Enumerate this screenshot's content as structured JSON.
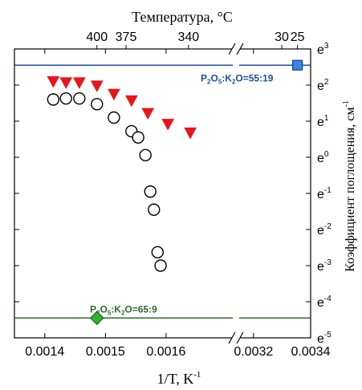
{
  "chart_data": {
    "type": "scatter",
    "top_axis": {
      "label": "Температура, °С",
      "ticks": [
        {
          "label": "400",
          "x": 0.001486
        },
        {
          "label": "375",
          "x": 0.001534
        },
        {
          "label": "340",
          "x": 0.001637
        },
        {
          "label": "30",
          "x": 0.003299
        },
        {
          "label": "25",
          "x": 0.003354
        }
      ]
    },
    "x_axis": {
      "label_main": "1/T, K",
      "label_sup": "-1",
      "segments": [
        {
          "range": [
            0.00135,
            0.00171
          ]
        },
        {
          "range": [
            0.00315,
            0.0034
          ]
        }
      ],
      "ticks": [
        {
          "label": "0.0014",
          "x": 0.0014
        },
        {
          "label": "0.0015",
          "x": 0.0015
        },
        {
          "label": "0.0016",
          "x": 0.0016
        },
        {
          "label": "0.0032",
          "x": 0.0032
        },
        {
          "label": "0.0034",
          "x": 0.0034
        }
      ]
    },
    "y_axis": {
      "label_main": "Коэффициент поглощения, см",
      "label_sup": "-1",
      "scale": "log-e",
      "exp_range": [
        -5,
        3
      ],
      "ticks": [
        {
          "base": "e",
          "exp": "3",
          "value": 3
        },
        {
          "base": "e",
          "exp": "2",
          "value": 2
        },
        {
          "base": "e",
          "exp": "1",
          "value": 1
        },
        {
          "base": "e",
          "exp": "0",
          "value": 0
        },
        {
          "base": "e",
          "exp": "-1",
          "value": -1
        },
        {
          "base": "e",
          "exp": "-2",
          "value": -2
        },
        {
          "base": "e",
          "exp": "-3",
          "value": -3
        },
        {
          "base": "e",
          "exp": "-4",
          "value": -4
        },
        {
          "base": "e",
          "exp": "-5",
          "value": -5
        }
      ]
    },
    "series": [
      {
        "marker": "triangle-down",
        "color": "#e8151b",
        "points": [
          [
            0.001414,
            2.1
          ],
          [
            0.001435,
            2.07
          ],
          [
            0.001457,
            2.07
          ],
          [
            0.001486,
            1.98
          ],
          [
            0.001514,
            1.75
          ],
          [
            0.001543,
            1.57
          ],
          [
            0.00157,
            1.22
          ],
          [
            0.001603,
            0.92
          ],
          [
            0.00164,
            0.68
          ]
        ]
      },
      {
        "marker": "circle-open",
        "color": "#000000",
        "points": [
          [
            0.001414,
            1.6
          ],
          [
            0.001435,
            1.63
          ],
          [
            0.001457,
            1.63
          ],
          [
            0.001486,
            1.47
          ],
          [
            0.001514,
            1.1
          ],
          [
            0.001543,
            0.72
          ],
          [
            0.001554,
            0.55
          ],
          [
            0.001566,
            0.06
          ],
          [
            0.001574,
            -0.95
          ],
          [
            0.00158,
            -1.45
          ],
          [
            0.001586,
            -2.63
          ],
          [
            0.001591,
            -3.0
          ]
        ]
      }
    ],
    "reference_lines": [
      {
        "label_parts": [
          "P",
          "2",
          "O",
          "5",
          ":K",
          "2",
          "O=55:19"
        ],
        "y": 2.55,
        "color": "#1f4f9c",
        "marker": "square",
        "marker_color": "#3b82e8",
        "marker_x": 0.003354
      },
      {
        "label_parts": [
          "P",
          "2",
          "O",
          "5",
          ":K",
          "2",
          "O=65:9"
        ],
        "y": -4.45,
        "color": "#2e6b2a",
        "marker": "diamond",
        "marker_color": "#2db52a",
        "marker_x": 0.001486
      }
    ],
    "grid": false,
    "axis_break": true
  }
}
